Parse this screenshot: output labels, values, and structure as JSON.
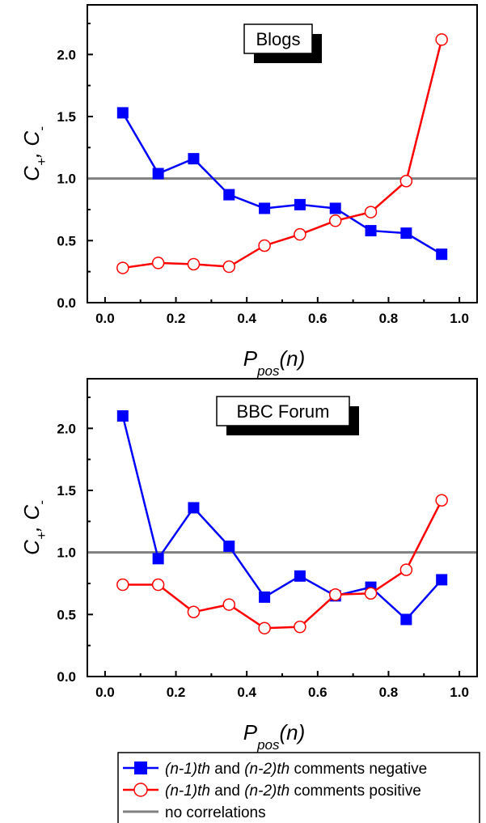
{
  "chart_data": [
    {
      "type": "line",
      "title": "Blogs",
      "xlabel_main": "P",
      "xlabel_sub": "pos",
      "xlabel_tail": "(n)",
      "ylabel": {
        "c1": "C",
        "sub1": "+",
        "sep": ", ",
        "c2": "C",
        "sub2": "-"
      },
      "xlim": [
        -0.05,
        1.05
      ],
      "ylim": [
        0.0,
        2.4
      ],
      "xticks": [
        0.0,
        0.2,
        0.4,
        0.6,
        0.8,
        1.0
      ],
      "xtick_labels": [
        "0.0",
        "0.2",
        "0.4",
        "0.6",
        "0.8",
        "1.0"
      ],
      "yticks": [
        0.0,
        0.5,
        1.0,
        1.5,
        2.0
      ],
      "ytick_labels": [
        "0.0",
        "0.5",
        "1.0",
        "1.5",
        "2.0"
      ],
      "x": [
        0.05,
        0.15,
        0.25,
        0.35,
        0.45,
        0.55,
        0.65,
        0.75,
        0.85,
        0.95
      ],
      "series": [
        {
          "id": "negative",
          "color": "#0000ff",
          "marker": "square",
          "values": [
            1.53,
            1.04,
            1.16,
            0.87,
            0.76,
            0.79,
            0.76,
            0.58,
            0.56,
            0.39
          ]
        },
        {
          "id": "positive",
          "color": "#ff0000",
          "marker": "circle",
          "values": [
            0.28,
            0.32,
            0.31,
            0.29,
            0.46,
            0.55,
            0.66,
            0.73,
            0.98,
            2.12
          ]
        }
      ],
      "reference_line": {
        "id": "no-correlation",
        "y": 1.0,
        "color": "#808080"
      }
    },
    {
      "type": "line",
      "title": "BBC Forum",
      "xlabel_main": "P",
      "xlabel_sub": "pos",
      "xlabel_tail": "(n)",
      "ylabel": {
        "c1": "C",
        "sub1": "+",
        "sep": ", ",
        "c2": "C",
        "sub2": "-"
      },
      "xlim": [
        -0.05,
        1.05
      ],
      "ylim": [
        0.0,
        2.4
      ],
      "xticks": [
        0.0,
        0.2,
        0.4,
        0.6,
        0.8,
        1.0
      ],
      "xtick_labels": [
        "0.0",
        "0.2",
        "0.4",
        "0.6",
        "0.8",
        "1.0"
      ],
      "yticks": [
        0.0,
        0.5,
        1.0,
        1.5,
        2.0
      ],
      "ytick_labels": [
        "0.0",
        "0.5",
        "1.0",
        "1.5",
        "2.0"
      ],
      "x": [
        0.05,
        0.15,
        0.25,
        0.35,
        0.45,
        0.55,
        0.65,
        0.75,
        0.85,
        0.95
      ],
      "series": [
        {
          "id": "negative",
          "color": "#0000ff",
          "marker": "square",
          "values": [
            2.1,
            0.95,
            1.36,
            1.05,
            0.64,
            0.81,
            0.65,
            0.72,
            0.46,
            0.78
          ]
        },
        {
          "id": "positive",
          "color": "#ff0000",
          "marker": "circle",
          "values": [
            0.74,
            0.74,
            0.52,
            0.58,
            0.39,
            0.4,
            0.66,
            0.67,
            0.86,
            1.42
          ]
        }
      ],
      "reference_line": {
        "id": "no-correlation",
        "y": 1.0,
        "color": "#808080"
      }
    }
  ],
  "legend": {
    "placement": "bottom",
    "entries": [
      {
        "id": "negative",
        "marker": "square",
        "color": "#0000ff",
        "italic": "(n-1)th",
        "mid": "  and  ",
        "italic2": "(n-2)th",
        "tail": " comments negative"
      },
      {
        "id": "positive",
        "marker": "circle",
        "color": "#ff0000",
        "italic": "(n-1)th",
        "mid": "  and  ",
        "italic2": "(n-2)th",
        "tail": " comments positive"
      },
      {
        "id": "no-correlation",
        "marker": "none",
        "color": "#808080",
        "text": "no correlations"
      }
    ]
  }
}
